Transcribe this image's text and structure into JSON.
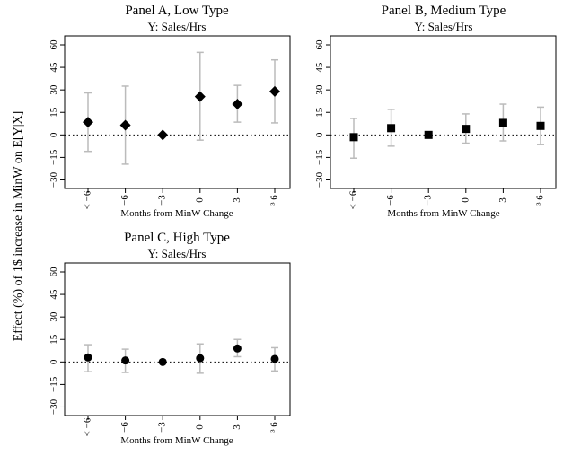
{
  "chart_data": [
    {
      "type": "scatter",
      "title": "Panel A, Low Type",
      "subtitle": "Y: Sales/Hrs",
      "xlabel": "Months from MinW Change",
      "ylabel": "Effect (%) of 1$ increase in MinW on E[Y|X]",
      "categories": [
        "< −6",
        "−6",
        "−3",
        "0",
        "3",
        "³ 6"
      ],
      "marker": "diamond",
      "marker_color": "#000000",
      "errorbar_color": "#bbbbbb",
      "values": [
        8.5,
        6.5,
        0,
        25.5,
        20.5,
        29
      ],
      "ci_lower": [
        -11,
        -19.5,
        0,
        -3.5,
        8.5,
        8
      ],
      "ci_upper": [
        28,
        32.5,
        0,
        55,
        33,
        50
      ],
      "ylim": [
        -35,
        65
      ],
      "yticks": [
        -30,
        -15,
        0,
        15,
        30,
        45,
        60
      ],
      "reference_line": 0
    },
    {
      "type": "scatter",
      "title": "Panel B, Medium Type",
      "subtitle": "Y: Sales/Hrs",
      "xlabel": "Months from MinW Change",
      "categories": [
        "< −6",
        "−6",
        "−3",
        "0",
        "3",
        "³ 6"
      ],
      "marker": "square",
      "marker_color": "#000000",
      "errorbar_color": "#bbbbbb",
      "values": [
        -1.5,
        4.5,
        0,
        4,
        8,
        6
      ],
      "ci_lower": [
        -15.5,
        -7.5,
        0,
        -5.5,
        -4,
        -6.5
      ],
      "ci_upper": [
        11,
        17,
        0,
        14,
        20.5,
        18.5
      ],
      "ylim": [
        -35,
        65
      ],
      "yticks": [
        -30,
        -15,
        0,
        15,
        30,
        45,
        60
      ],
      "reference_line": 0
    },
    {
      "type": "scatter",
      "title": "Panel C, High Type",
      "subtitle": "Y: Sales/Hrs",
      "xlabel": "Months from MinW Change",
      "categories": [
        "< −6",
        "−6",
        "−3",
        "0",
        "3",
        "³ 6"
      ],
      "marker": "circle",
      "marker_color": "#000000",
      "errorbar_color": "#bbbbbb",
      "values": [
        3,
        1,
        0,
        2.5,
        9,
        2
      ],
      "ci_lower": [
        -6.5,
        -7,
        0,
        -7.5,
        3.5,
        -6
      ],
      "ci_upper": [
        11.5,
        8.5,
        0,
        12,
        15,
        9.5
      ],
      "ylim": [
        -35,
        65
      ],
      "yticks": [
        -30,
        -15,
        0,
        15,
        30,
        45,
        60
      ],
      "reference_line": 0
    }
  ]
}
